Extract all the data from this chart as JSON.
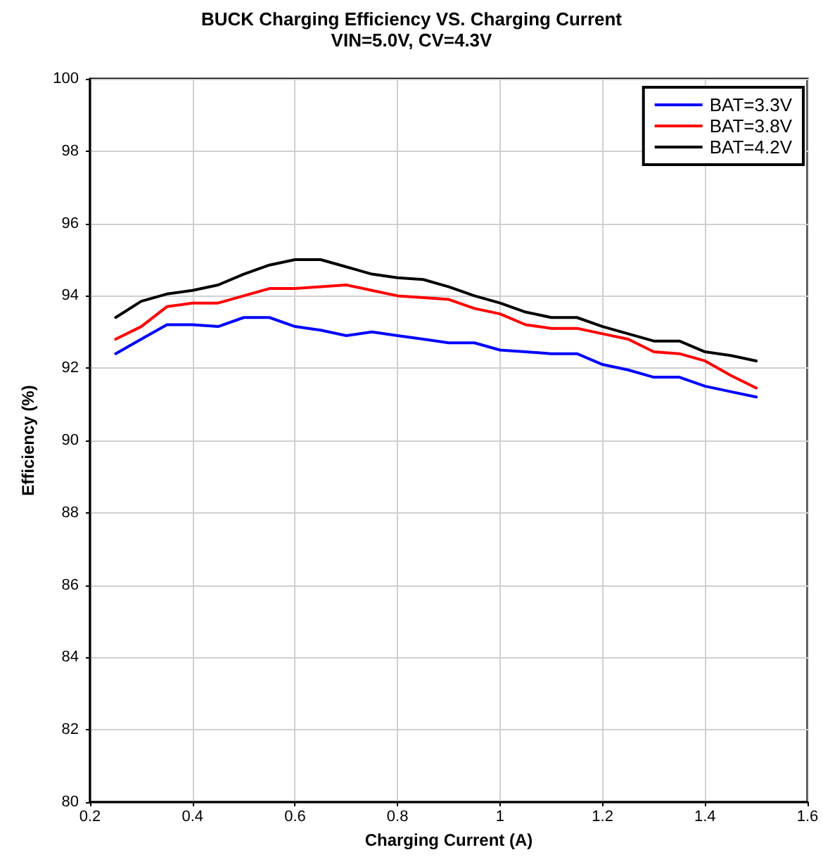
{
  "chart_data": {
    "type": "line",
    "title": "BUCK Charging Efficiency VS. Charging Current",
    "subtitle": "VIN=5.0V, CV=4.3V",
    "xlabel": "Charging Current (A)",
    "ylabel": "Efficiency (%)",
    "x": [
      0.25,
      0.3,
      0.35,
      0.4,
      0.45,
      0.5,
      0.55,
      0.6,
      0.65,
      0.7,
      0.75,
      0.8,
      0.85,
      0.9,
      0.95,
      1.0,
      1.05,
      1.1,
      1.15,
      1.2,
      1.25,
      1.3,
      1.35,
      1.4,
      1.45,
      1.5
    ],
    "series": [
      {
        "name": "BAT=3.3V",
        "color": "#0000ff",
        "values": [
          92.4,
          92.8,
          93.2,
          93.2,
          93.15,
          93.4,
          93.4,
          93.15,
          93.05,
          92.9,
          93.0,
          92.9,
          92.8,
          92.7,
          92.7,
          92.5,
          92.45,
          92.4,
          92.4,
          92.1,
          91.95,
          91.75,
          91.75,
          91.5,
          91.35,
          91.2
        ]
      },
      {
        "name": "BAT=3.8V",
        "color": "#ff0000",
        "values": [
          92.8,
          93.15,
          93.7,
          93.8,
          93.8,
          94.0,
          94.2,
          94.2,
          94.25,
          94.3,
          94.15,
          94.0,
          93.95,
          93.9,
          93.65,
          93.5,
          93.2,
          93.1,
          93.1,
          92.95,
          92.8,
          92.45,
          92.4,
          92.2,
          91.8,
          91.45
        ]
      },
      {
        "name": "BAT=4.2V",
        "color": "#000000",
        "values": [
          93.4,
          93.85,
          94.05,
          94.15,
          94.3,
          94.6,
          94.85,
          95.0,
          95.0,
          94.8,
          94.6,
          94.5,
          94.45,
          94.25,
          94.0,
          93.8,
          93.55,
          93.4,
          93.4,
          93.15,
          92.95,
          92.75,
          92.75,
          92.45,
          92.35,
          92.2
        ]
      }
    ],
    "xlim": [
      0.2,
      1.6
    ],
    "xticks": [
      0.2,
      0.4,
      0.6,
      0.8,
      1,
      1.2,
      1.4,
      1.6
    ],
    "ylim": [
      80,
      100
    ],
    "yticks": [
      80,
      82,
      84,
      86,
      88,
      90,
      92,
      94,
      96,
      98,
      100
    ],
    "grid": true,
    "legend": "top right",
    "marker": "none",
    "line_style": "solid"
  }
}
